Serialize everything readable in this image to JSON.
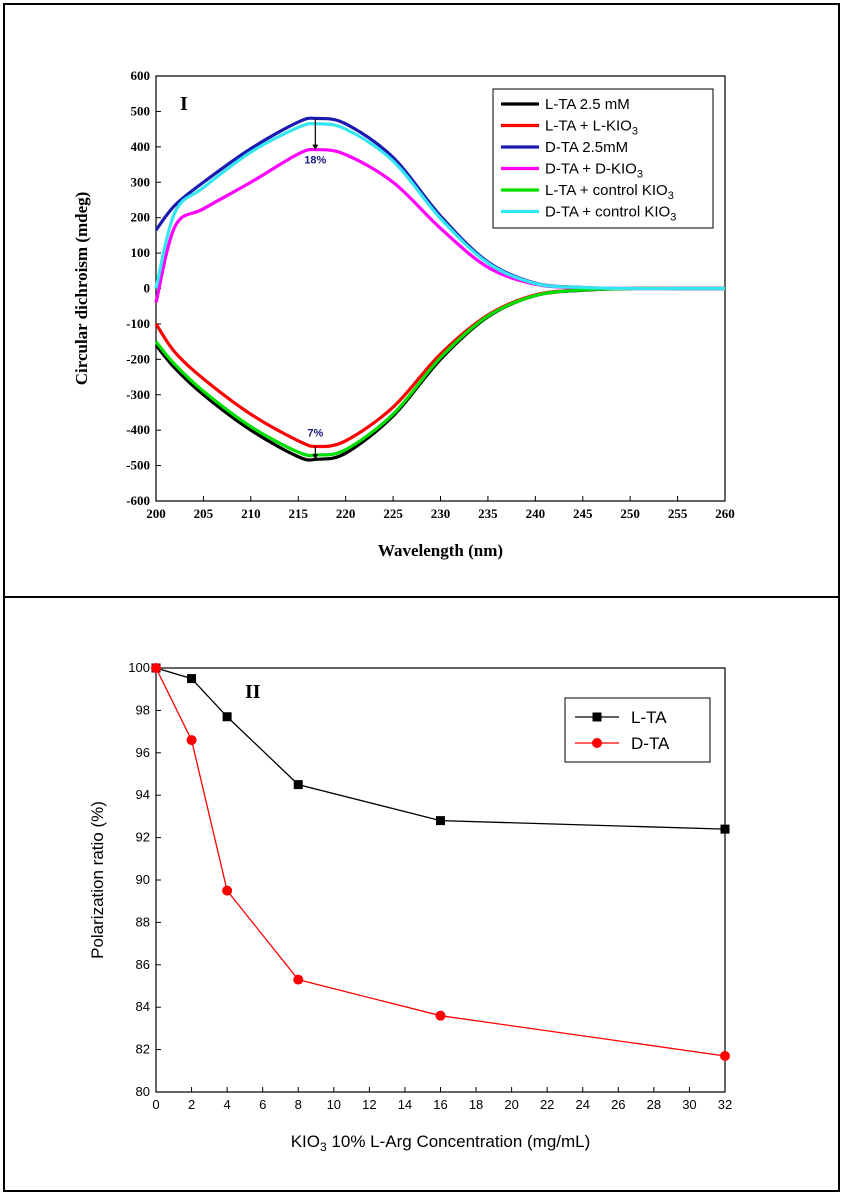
{
  "chart_data": [
    {
      "type": "line",
      "panel_label": "I",
      "xlabel": "Wavelength (nm)",
      "ylabel": "Circular dichroism (mdeg)",
      "xlim": [
        200,
        260
      ],
      "ylim": [
        -600,
        600
      ],
      "xticks": [
        200,
        205,
        210,
        215,
        220,
        225,
        230,
        235,
        240,
        245,
        250,
        255,
        260
      ],
      "yticks": [
        -600,
        -500,
        -400,
        -300,
        -200,
        -100,
        0,
        100,
        200,
        300,
        400,
        500,
        600
      ],
      "grid": false,
      "legend_position": "top-right",
      "x": [
        200,
        202,
        205,
        210,
        215,
        217,
        220,
        225,
        230,
        235,
        240,
        245,
        250,
        255,
        260
      ],
      "series": [
        {
          "name": "L-TA 2.5 mM",
          "name_base": "L-TA 2.5 mM",
          "name_sub": "",
          "color": "#000000",
          "values": [
            -160,
            -225,
            -300,
            -400,
            -475,
            -482,
            -465,
            -360,
            -200,
            -80,
            -20,
            -5,
            0,
            0,
            0
          ]
        },
        {
          "name": "L-TA + L-KIO3",
          "name_base": "L-TA + L-KIO",
          "name_sub": "3",
          "color": "#ff0000",
          "values": [
            -100,
            -180,
            -255,
            -355,
            -430,
            -446,
            -430,
            -335,
            -185,
            -75,
            -18,
            -4,
            0,
            0,
            0
          ]
        },
        {
          "name": "D-TA 2.5mM",
          "name_base": "D-TA 2.5mM",
          "name_sub": "",
          "color": "#1a1ab0",
          "values": [
            165,
            235,
            300,
            395,
            470,
            480,
            465,
            370,
            205,
            75,
            15,
            3,
            0,
            0,
            0
          ]
        },
        {
          "name": "D-TA + D-KIO3",
          "name_base": "D-TA + D-KIO",
          "name_sub": "3",
          "color": "#ff00ff",
          "values": [
            -40,
            175,
            225,
            300,
            380,
            392,
            378,
            300,
            170,
            60,
            12,
            2,
            0,
            0,
            0
          ]
        },
        {
          "name": "L-TA + control KIO3",
          "name_base": "L-TA + control KIO",
          "name_sub": "3",
          "color": "#00e000",
          "values": [
            -150,
            -215,
            -290,
            -390,
            -462,
            -470,
            -455,
            -355,
            -195,
            -78,
            -20,
            -4,
            0,
            0,
            0
          ]
        },
        {
          "name": "D-TA + control KIO3",
          "name_base": "D-TA + control KIO",
          "name_sub": "3",
          "color": "#33e6f2",
          "values": [
            0,
            215,
            285,
            385,
            455,
            465,
            450,
            360,
            198,
            72,
            14,
            3,
            0,
            0,
            0
          ]
        }
      ],
      "annotations": [
        {
          "text": "18%",
          "x": 216.8,
          "y_from": 478,
          "y_to": 392
        },
        {
          "text": "7%",
          "x": 216.8,
          "y_from": -446,
          "y_to": -482
        }
      ]
    },
    {
      "type": "line",
      "panel_label": "II",
      "xlabel_base": "KIO",
      "xlabel_sub": "3",
      "xlabel_rest": " 10% L-Arg Concentration (mg/mL)",
      "ylabel": "Polarization ratio (%)",
      "xlim": [
        0,
        32
      ],
      "ylim": [
        80,
        100
      ],
      "xticks": [
        0,
        2,
        4,
        6,
        8,
        10,
        12,
        14,
        16,
        18,
        20,
        22,
        24,
        26,
        28,
        30,
        32
      ],
      "yticks": [
        80,
        82,
        84,
        86,
        88,
        90,
        92,
        94,
        96,
        98,
        100
      ],
      "grid": false,
      "legend_position": "top-right",
      "x": [
        0,
        2,
        4,
        8,
        16,
        32
      ],
      "series": [
        {
          "name": "L-TA",
          "color": "#000000",
          "marker": "square",
          "values": [
            100,
            99.5,
            97.7,
            94.5,
            92.8,
            92.4
          ]
        },
        {
          "name": "D-TA",
          "color": "#ff0000",
          "marker": "circle",
          "values": [
            100,
            96.6,
            89.5,
            85.3,
            83.6,
            81.7
          ]
        }
      ]
    }
  ]
}
